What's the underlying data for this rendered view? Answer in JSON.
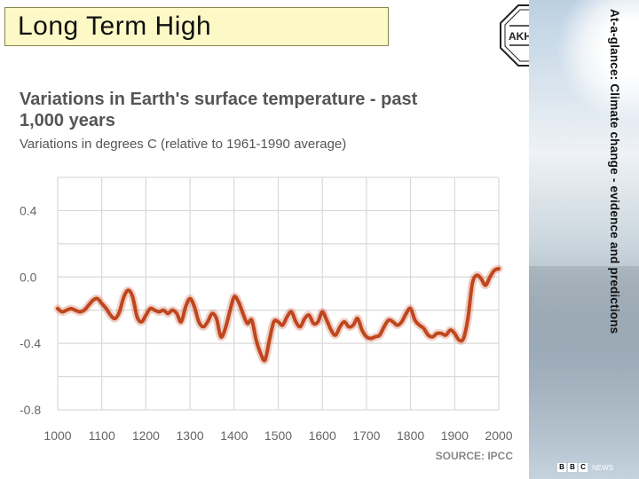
{
  "slide": {
    "title": "Long Term High",
    "side_caption": "At-a-glance: Climate change - evidence and predictions",
    "logo_text": "AKHTER",
    "bbc_letters": [
      "B",
      "B",
      "C"
    ],
    "bbc_suffix": "NEWS"
  },
  "colors": {
    "line": "#c0461e",
    "grid": "#d9d9d9",
    "title_bg": "#fdf9c6"
  },
  "chart_data": {
    "type": "line",
    "title": "Variations in Earth's surface temperature - past 1,000 years",
    "subtitle": "Variations in degrees C (relative to 1961-1990 average)",
    "source": "SOURCE: IPCC",
    "xlabel": "",
    "ylabel": "",
    "xlim": [
      1000,
      2000
    ],
    "ylim": [
      -0.8,
      0.6
    ],
    "x_ticks": [
      1000,
      1100,
      1200,
      1300,
      1400,
      1500,
      1600,
      1700,
      1800,
      1900,
      2000
    ],
    "y_ticks": [
      0.4,
      0.0,
      -0.4,
      -0.8
    ],
    "y_tick_labels": [
      "0.4",
      "0.0",
      "-0.4",
      "-0.8"
    ],
    "grid": true,
    "series": [
      {
        "x": [
          1000,
          1010,
          1020,
          1030,
          1040,
          1050,
          1060,
          1070,
          1080,
          1090,
          1100,
          1110,
          1120,
          1130,
          1140,
          1150,
          1160,
          1170,
          1180,
          1190,
          1200,
          1210,
          1220,
          1230,
          1240,
          1250,
          1260,
          1270,
          1280,
          1290,
          1300,
          1310,
          1320,
          1330,
          1340,
          1350,
          1360,
          1370,
          1380,
          1390,
          1400,
          1410,
          1420,
          1430,
          1440,
          1450,
          1460,
          1470,
          1480,
          1490,
          1500,
          1510,
          1520,
          1530,
          1540,
          1550,
          1560,
          1570,
          1580,
          1590,
          1600,
          1610,
          1620,
          1630,
          1640,
          1650,
          1660,
          1670,
          1680,
          1690,
          1700,
          1710,
          1720,
          1730,
          1740,
          1750,
          1760,
          1770,
          1780,
          1790,
          1800,
          1810,
          1820,
          1830,
          1840,
          1850,
          1860,
          1870,
          1880,
          1890,
          1900,
          1910,
          1920,
          1930,
          1940,
          1950,
          1960,
          1970,
          1980,
          1990,
          2000
        ],
        "y": [
          -0.19,
          -0.21,
          -0.2,
          -0.19,
          -0.2,
          -0.21,
          -0.2,
          -0.17,
          -0.14,
          -0.13,
          -0.16,
          -0.19,
          -0.23,
          -0.25,
          -0.21,
          -0.12,
          -0.08,
          -0.12,
          -0.24,
          -0.27,
          -0.23,
          -0.19,
          -0.2,
          -0.21,
          -0.2,
          -0.22,
          -0.2,
          -0.22,
          -0.27,
          -0.18,
          -0.13,
          -0.18,
          -0.27,
          -0.3,
          -0.27,
          -0.22,
          -0.25,
          -0.36,
          -0.31,
          -0.21,
          -0.12,
          -0.15,
          -0.22,
          -0.28,
          -0.26,
          -0.38,
          -0.46,
          -0.5,
          -0.38,
          -0.27,
          -0.27,
          -0.29,
          -0.24,
          -0.21,
          -0.27,
          -0.3,
          -0.25,
          -0.23,
          -0.28,
          -0.27,
          -0.21,
          -0.26,
          -0.32,
          -0.35,
          -0.3,
          -0.27,
          -0.3,
          -0.29,
          -0.25,
          -0.32,
          -0.36,
          -0.37,
          -0.36,
          -0.35,
          -0.3,
          -0.26,
          -0.27,
          -0.29,
          -0.27,
          -0.22,
          -0.19,
          -0.26,
          -0.29,
          -0.31,
          -0.35,
          -0.36,
          -0.34,
          -0.34,
          -0.35,
          -0.32,
          -0.34,
          -0.38,
          -0.37,
          -0.25,
          -0.04,
          0.01,
          -0.01,
          -0.05,
          0.0,
          0.04,
          0.05
        ]
      }
    ]
  }
}
